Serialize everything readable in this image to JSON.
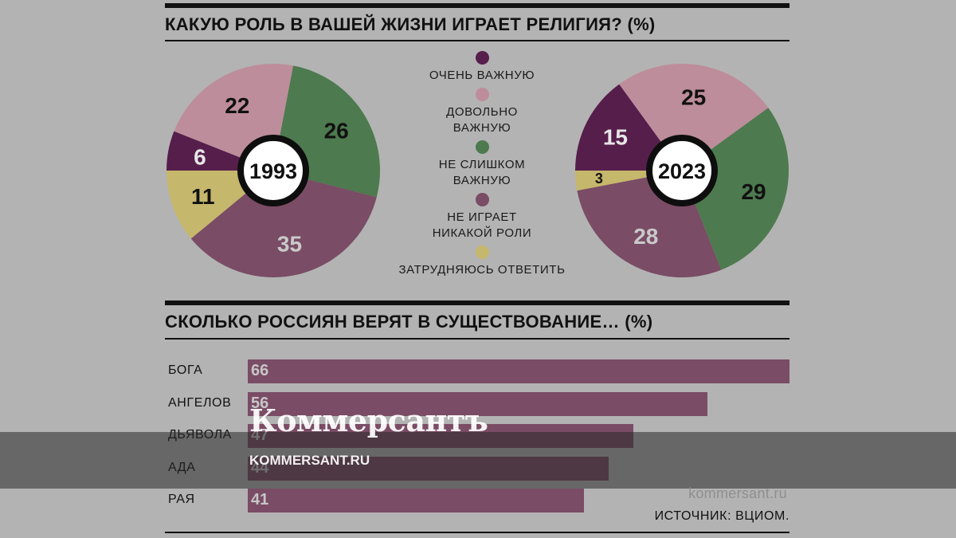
{
  "heading1": "КАКУЮ РОЛЬ В ВАШЕЙ ЖИЗНИ ИГРАЕТ РЕЛИГИЯ? (%)",
  "heading2": "СКОЛЬКО РОССИЯН ВЕРЯТ В СУЩЕСТВОВАНИЕ… (%)",
  "legend": [
    {
      "label": "ОЧЕНЬ ВАЖНУЮ",
      "color": "#561e4b"
    },
    {
      "label": "ДОВОЛЬНО\nВАЖНУЮ",
      "color": "#bd8d9b"
    },
    {
      "label": "НЕ СЛИШКОМ\nВАЖНУЮ",
      "color": "#4d7a4e"
    },
    {
      "label": "НЕ ИГРАЕТ\nНИКАКОЙ РОЛИ",
      "color": "#7a4c65"
    },
    {
      "label": "ЗАТРУДНЯЮСЬ ОТВЕТИТЬ",
      "color": "#c5b76b"
    }
  ],
  "source": "ИСТОЧНИК: ВЦИОМ.",
  "watermark": {
    "logo": "Коммерсантъ",
    "site": "KOMMERSANT.RU",
    "small": "kommersant.ru"
  },
  "chart_data": [
    {
      "type": "pie",
      "title": "1993",
      "categories": [
        "ОЧЕНЬ ВАЖНУЮ",
        "ДОВОЛЬНО ВАЖНУЮ",
        "НЕ СЛИШКОМ ВАЖНУЮ",
        "НЕ ИГРАЕТ НИКАКОЙ РОЛИ",
        "ЗАТРУДНЯЮСЬ ОТВЕТИТЬ"
      ],
      "values": [
        6,
        22,
        26,
        35,
        11
      ],
      "label_colors": [
        "#e6e6e6",
        "#111111",
        "#111111",
        "#c9c9c9",
        "#111111"
      ]
    },
    {
      "type": "pie",
      "title": "2023",
      "categories": [
        "ОЧЕНЬ ВАЖНУЮ",
        "ДОВОЛЬНО ВАЖНУЮ",
        "НЕ СЛИШКОМ ВАЖНУЮ",
        "НЕ ИГРАЕТ НИКАКОЙ РОЛИ",
        "ЗАТРУДНЯЮСЬ ОТВЕТИТЬ"
      ],
      "values": [
        15,
        25,
        29,
        28,
        3
      ],
      "label_colors": [
        "#e6e6e6",
        "#111111",
        "#111111",
        "#c9c9c9",
        "#111111"
      ]
    },
    {
      "type": "bar",
      "orientation": "horizontal",
      "categories": [
        "БОГА",
        "АНГЕЛОВ",
        "ДЬЯВОЛА",
        "АДА",
        "РАЯ"
      ],
      "values": [
        66,
        56,
        47,
        44,
        41
      ],
      "color": "#7a4c65"
    }
  ]
}
